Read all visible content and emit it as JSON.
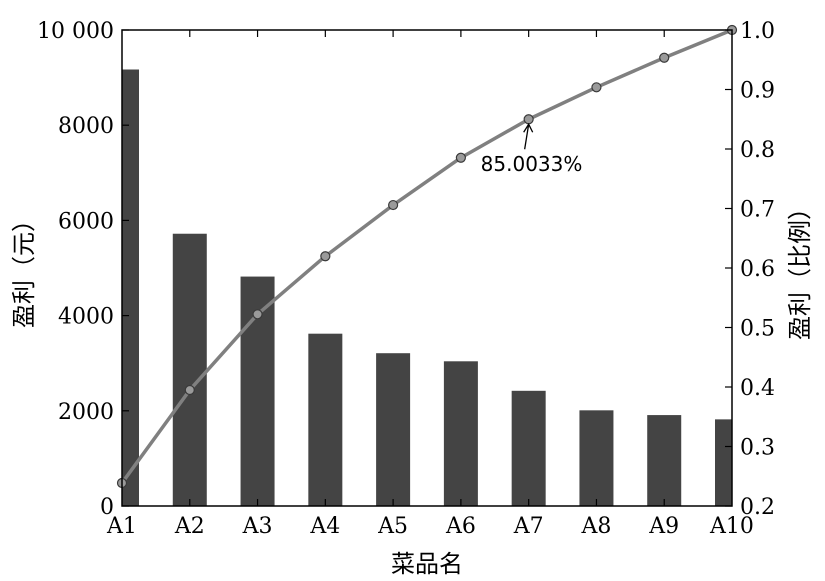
{
  "chart_data": {
    "type": "bar",
    "categories": [
      "A1",
      "A2",
      "A3",
      "A4",
      "A5",
      "A6",
      "A7",
      "A8",
      "A9",
      "A10"
    ],
    "series": [
      {
        "type": "bar",
        "axis": "left",
        "color": "#444444",
        "values": [
          9170,
          5720,
          4820,
          3620,
          3210,
          3040,
          2420,
          2010,
          1910,
          1820
        ]
      },
      {
        "type": "line",
        "axis": "right",
        "color": "#808080",
        "values": [
          0.2387,
          0.395,
          0.5222,
          0.6198,
          0.7058,
          0.7853,
          0.85,
          0.9037,
          0.9533,
          1.0
        ]
      }
    ],
    "xlabel": "菜品名",
    "ylabel_left": "盈利（元）",
    "ylabel_right": "盈利（比例）",
    "ylim_left": [
      0,
      10000
    ],
    "ylim_right": [
      0.2,
      1.0
    ],
    "yticks_left": [
      "0",
      "2000",
      "4000",
      "6000",
      "8000",
      "10 000"
    ],
    "yticks_right": [
      "0.2",
      "0.3",
      "0.4",
      "0.5",
      "0.6",
      "0.7",
      "0.8",
      "0.9",
      "1.0"
    ],
    "yticks_left_values": [
      0,
      2000,
      4000,
      6000,
      8000,
      10000
    ],
    "yticks_right_values": [
      0.2,
      0.3,
      0.4,
      0.5,
      0.6,
      0.7,
      0.8,
      0.9,
      1.0
    ],
    "annotation": {
      "text": "85.0033%",
      "category": "A7",
      "value": 0.850033
    },
    "grid": false
  }
}
